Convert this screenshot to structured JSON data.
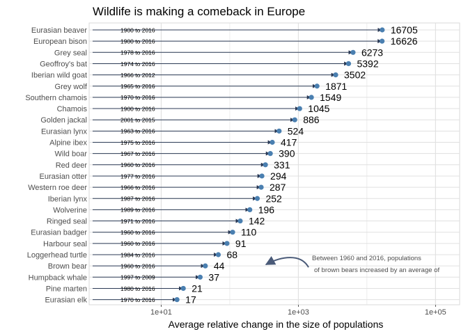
{
  "chart_data": {
    "type": "scatter",
    "title": "Wildlife is making a comeback in Europe",
    "xlabel": "Average relative change in the size of populations",
    "ylabel": "",
    "xscale": "log10",
    "xlim": [
      1,
      200000
    ],
    "x_ticks": [
      {
        "value": 10,
        "label": "1e+01"
      },
      {
        "value": 1000,
        "label": "1e+03"
      },
      {
        "value": 100000,
        "label": "1e+05"
      }
    ],
    "grid": true,
    "legend": "none",
    "arrow_start_value": 1,
    "colors": {
      "point": "#4a7fb0",
      "arrow": "#2b3a55",
      "grid": "#e0e0e0",
      "annotation_arrow": "#4a5a78"
    },
    "series": [
      {
        "species": "Eurasian beaver",
        "period": "1900 to 2016",
        "value": 16705
      },
      {
        "species": "European bison",
        "period": "1900 to 2016",
        "value": 16626
      },
      {
        "species": "Grey seal",
        "period": "1978 to 2016",
        "value": 6273
      },
      {
        "species": "Geoffroy's bat",
        "period": "1974 to 2016",
        "value": 5392
      },
      {
        "species": "Iberian wild goat",
        "period": "1966 to 2012",
        "value": 3502
      },
      {
        "species": "Grey wolf",
        "period": "1965 to 2016",
        "value": 1871
      },
      {
        "species": "Southern chamois",
        "period": "1970 to 2016",
        "value": 1549
      },
      {
        "species": "Chamois",
        "period": "1900 to 2016",
        "value": 1045
      },
      {
        "species": "Golden jackal",
        "period": "2001 to 2015",
        "value": 886
      },
      {
        "species": "Eurasian lynx",
        "period": "1963 to 2016",
        "value": 524
      },
      {
        "species": "Alpine ibex",
        "period": "1975 to 2016",
        "value": 417
      },
      {
        "species": "Wild boar",
        "period": "1967 to 2016",
        "value": 390
      },
      {
        "species": "Red deer",
        "period": "1960 to 2016",
        "value": 331
      },
      {
        "species": "Eurasian otter",
        "period": "1977 to 2016",
        "value": 294
      },
      {
        "species": "Western roe deer",
        "period": "1966 to 2016",
        "value": 287
      },
      {
        "species": "Iberian lynx",
        "period": "1987 to 2016",
        "value": 252
      },
      {
        "species": "Wolverine",
        "period": "1989 to 2016",
        "value": 196
      },
      {
        "species": "Ringed seal",
        "period": "1971 to 2016",
        "value": 142
      },
      {
        "species": "Eurasian badger",
        "period": "1960 to 2016",
        "value": 110
      },
      {
        "species": "Harbour seal",
        "period": "1960 to 2016",
        "value": 91
      },
      {
        "species": "Loggerhead turtle",
        "period": "1984 to 2016",
        "value": 68
      },
      {
        "species": "Brown bear",
        "period": "1960 to 2016",
        "value": 44
      },
      {
        "species": "Humpback whale",
        "period": "1997 to 2009",
        "value": 37
      },
      {
        "species": "Pine marten",
        "period": "1980 to 2016",
        "value": 21
      },
      {
        "species": "Eurasian elk",
        "period": "1970 to 2016",
        "value": 17
      }
    ],
    "annotation": {
      "line1": "Between 1960 and 2016, populations",
      "line2": "of brown bears increased by an average of",
      "target_species": "Brown bear"
    }
  }
}
